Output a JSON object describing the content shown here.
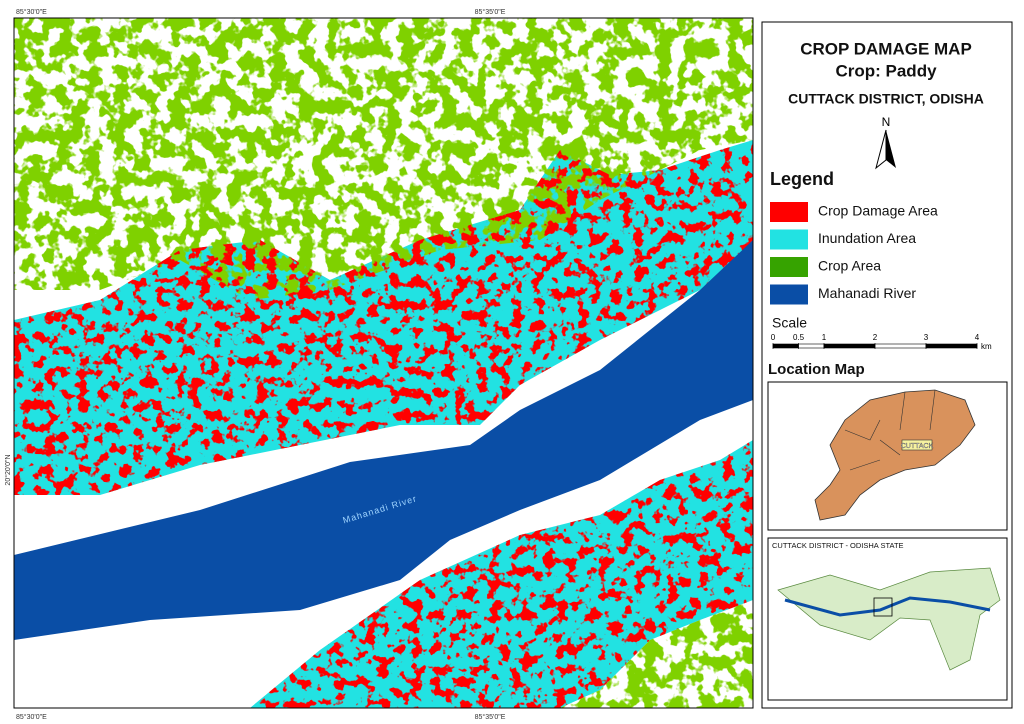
{
  "map": {
    "coordinates": {
      "top_left": "85°30'0\"E",
      "top_center": "85°35'0\"E",
      "bottom_left": "85°30'0\"E",
      "bottom_center": "85°35'0\"E",
      "left": "20°20'0\"N"
    },
    "river_label": "Mahanadi River"
  },
  "panel": {
    "title": "CROP DAMAGE MAP",
    "subtitle": "Crop: Paddy",
    "district": "CUTTACK DISTRICT, ODISHA",
    "north": "N",
    "legend": {
      "title": "Legend",
      "items": [
        {
          "label": "Crop Damage Area",
          "color": "#ff0000"
        },
        {
          "label": "Inundation Area",
          "color": "#22e2e2"
        },
        {
          "label": "Crop Area",
          "color": "#36a300"
        },
        {
          "label": "Mahanadi River",
          "color": "#0a4ea6"
        }
      ]
    },
    "scale": {
      "title": "Scale",
      "ticks": [
        0,
        0.5,
        1,
        2,
        3,
        4
      ],
      "unit": "km"
    },
    "location_map": {
      "title": "Location Map",
      "label": "CUTTACK"
    },
    "inset": {
      "title": "CUTTACK DISTRICT - ODISHA STATE"
    }
  }
}
